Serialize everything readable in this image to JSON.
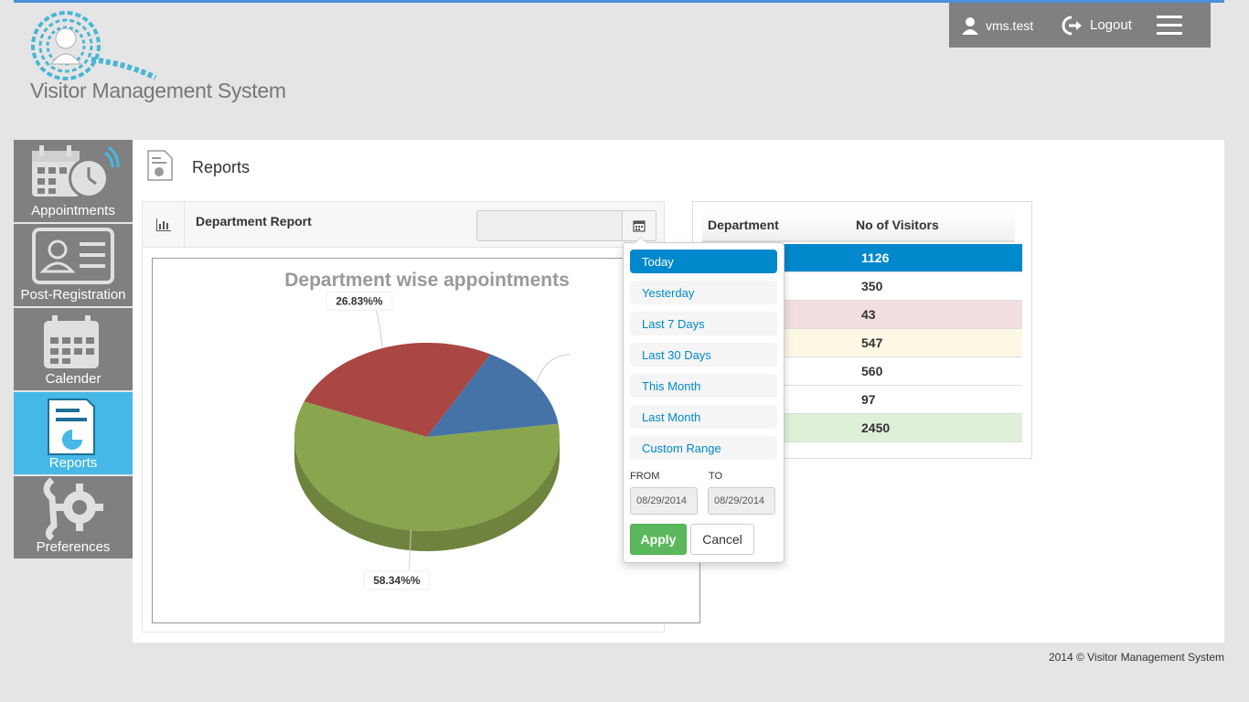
{
  "app": {
    "title": "Visitor Management System"
  },
  "header": {
    "user": "vms.test",
    "logout": "Logout"
  },
  "sidebar": {
    "items": [
      {
        "label": "Appointments",
        "icon": "calendar-clock-icon"
      },
      {
        "label": "Post-Registration",
        "icon": "id-card-icon"
      },
      {
        "label": "Calender",
        "icon": "calendar-icon"
      },
      {
        "label": "Reports",
        "icon": "report-icon"
      },
      {
        "label": "Preferences",
        "icon": "tools-gear-icon"
      }
    ]
  },
  "page": {
    "title": "Reports"
  },
  "report": {
    "title": "Department Report",
    "date_value": ""
  },
  "chart_data": {
    "type": "pie",
    "title": "Department wise appointments",
    "slices": [
      {
        "label": "26.83%%",
        "value": 26.83,
        "color": "#aa4643"
      },
      {
        "label": "",
        "value": 14.83,
        "color": "#4572a7"
      },
      {
        "label": "58.34%%",
        "value": 58.34,
        "color": "#89a54e"
      }
    ]
  },
  "table": {
    "headers": [
      "Department",
      "No of Visitors"
    ],
    "rows": [
      {
        "dept": "",
        "count": "1126",
        "color": "#0088cc",
        "text": "#ffffff"
      },
      {
        "dept": "",
        "count": "350",
        "color": "#ffffff",
        "text": "#333333"
      },
      {
        "dept": "",
        "count": "43",
        "color": "#f2dede",
        "text": "#333333"
      },
      {
        "dept": "",
        "count": "547",
        "color": "#fcf8e3",
        "text": "#333333"
      },
      {
        "dept": "",
        "count": "560",
        "color": "#ffffff",
        "text": "#333333"
      },
      {
        "dept": "",
        "count": "97",
        "color": "#ffffff",
        "text": "#333333"
      },
      {
        "dept": "",
        "count": "2450",
        "color": "#dff0d8",
        "text": "#333333"
      }
    ]
  },
  "daterange": {
    "ranges": [
      "Today",
      "Yesterday",
      "Last 7 Days",
      "Last 30 Days",
      "This Month",
      "Last Month",
      "Custom Range"
    ],
    "active_index": 0,
    "from_label": "FROM",
    "to_label": "TO",
    "from_value": "08/29/2014",
    "to_value": "08/29/2014",
    "apply": "Apply",
    "cancel": "Cancel"
  },
  "footer": {
    "text": "2014 © Visitor Management System"
  }
}
